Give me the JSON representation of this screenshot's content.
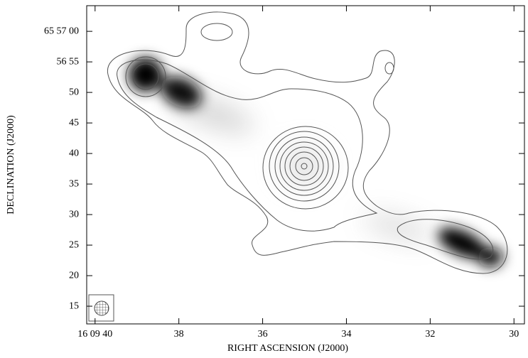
{
  "chart_data": {
    "type": "contour",
    "x_label": "RIGHT ASCENSION (J2000)",
    "y_label": "DECLINATION (J2000)",
    "xlim": [
      40.2,
      29.75
    ],
    "ylim": [
      12.1,
      64.2
    ],
    "xticks": [
      {
        "value": 40,
        "label": "16 09 40"
      },
      38,
      36,
      34,
      32,
      30
    ],
    "yticks": [
      15,
      20,
      25,
      30,
      35,
      40,
      45,
      50,
      {
        "value": 55,
        "label": "56 55"
      },
      {
        "value": 60,
        "label": "65 57 00"
      }
    ]
  }
}
